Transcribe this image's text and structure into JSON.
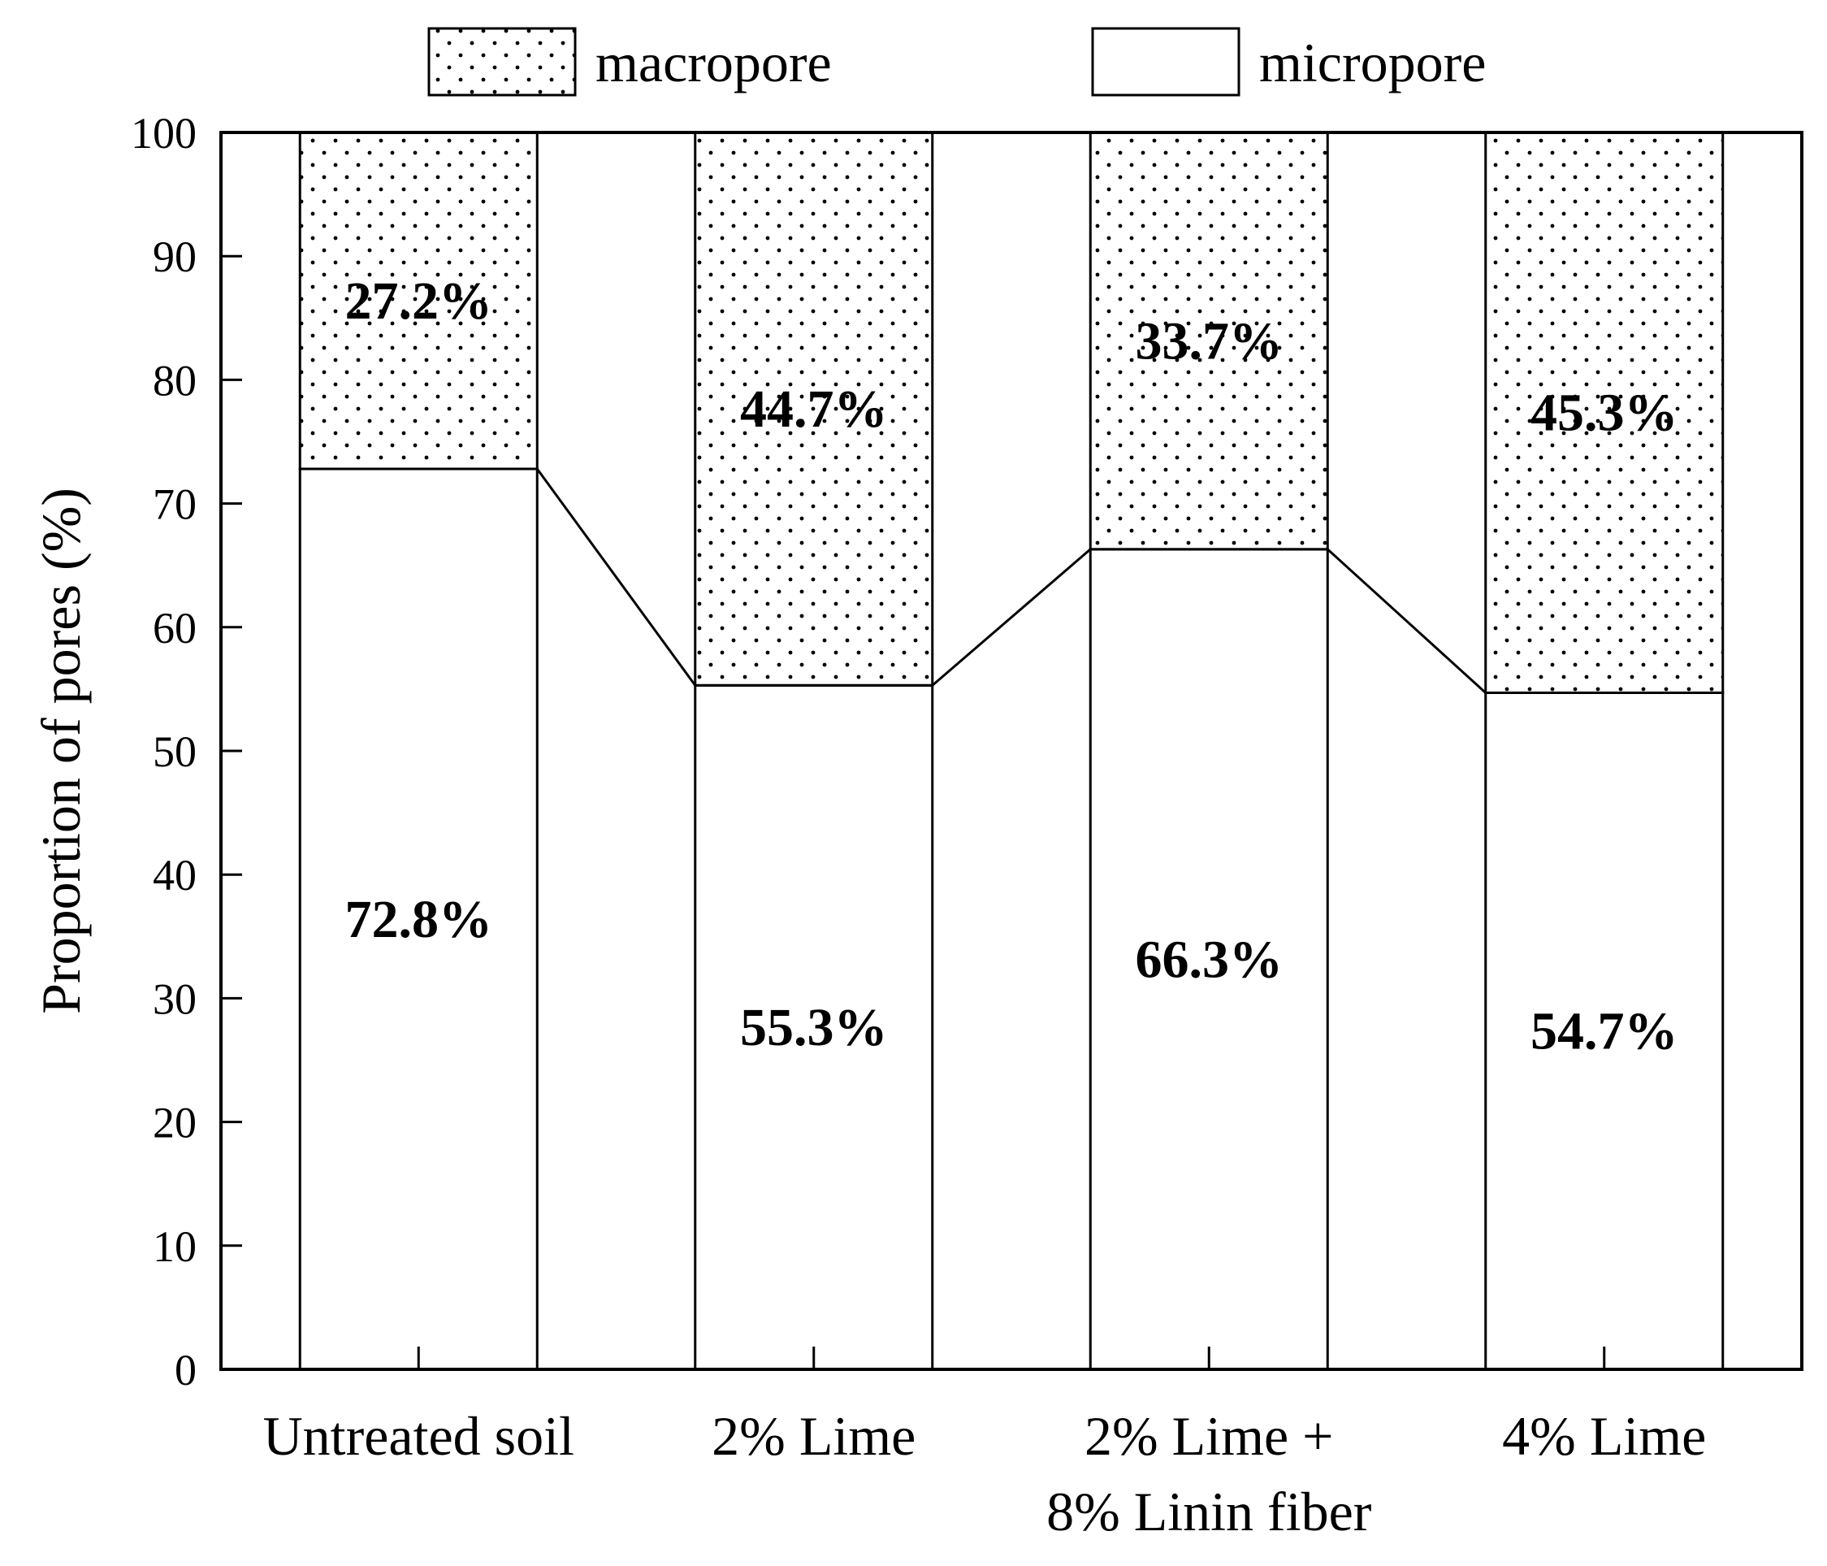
{
  "chart_data": {
    "type": "bar",
    "stacked": true,
    "categories": [
      [
        "Untreated soil"
      ],
      [
        "2% Lime"
      ],
      [
        "2% Lime +",
        "8% Linin fiber"
      ],
      [
        "4% Lime"
      ]
    ],
    "series": [
      {
        "name": "micropore",
        "values": [
          72.8,
          55.3,
          66.3,
          54.7
        ],
        "labels": [
          "72.8%",
          "55.3%",
          "66.3%",
          "54.7%"
        ],
        "pattern": "solid-white"
      },
      {
        "name": "macropore",
        "values": [
          27.2,
          44.7,
          33.7,
          45.3
        ],
        "labels": [
          "27.2%",
          "44.7%",
          "33.7%",
          "45.3%"
        ],
        "pattern": "dotted"
      }
    ],
    "ylabel": "Proportion of pores (%)",
    "xlabel": "",
    "ylim": [
      0,
      100
    ],
    "yticks": [
      0,
      10,
      20,
      30,
      40,
      50,
      60,
      70,
      80,
      90,
      100
    ],
    "grid": false,
    "legend": {
      "position": "top",
      "entries": [
        "macropore",
        "micropore"
      ]
    },
    "connector_line": "micropore tops connected across bars"
  }
}
